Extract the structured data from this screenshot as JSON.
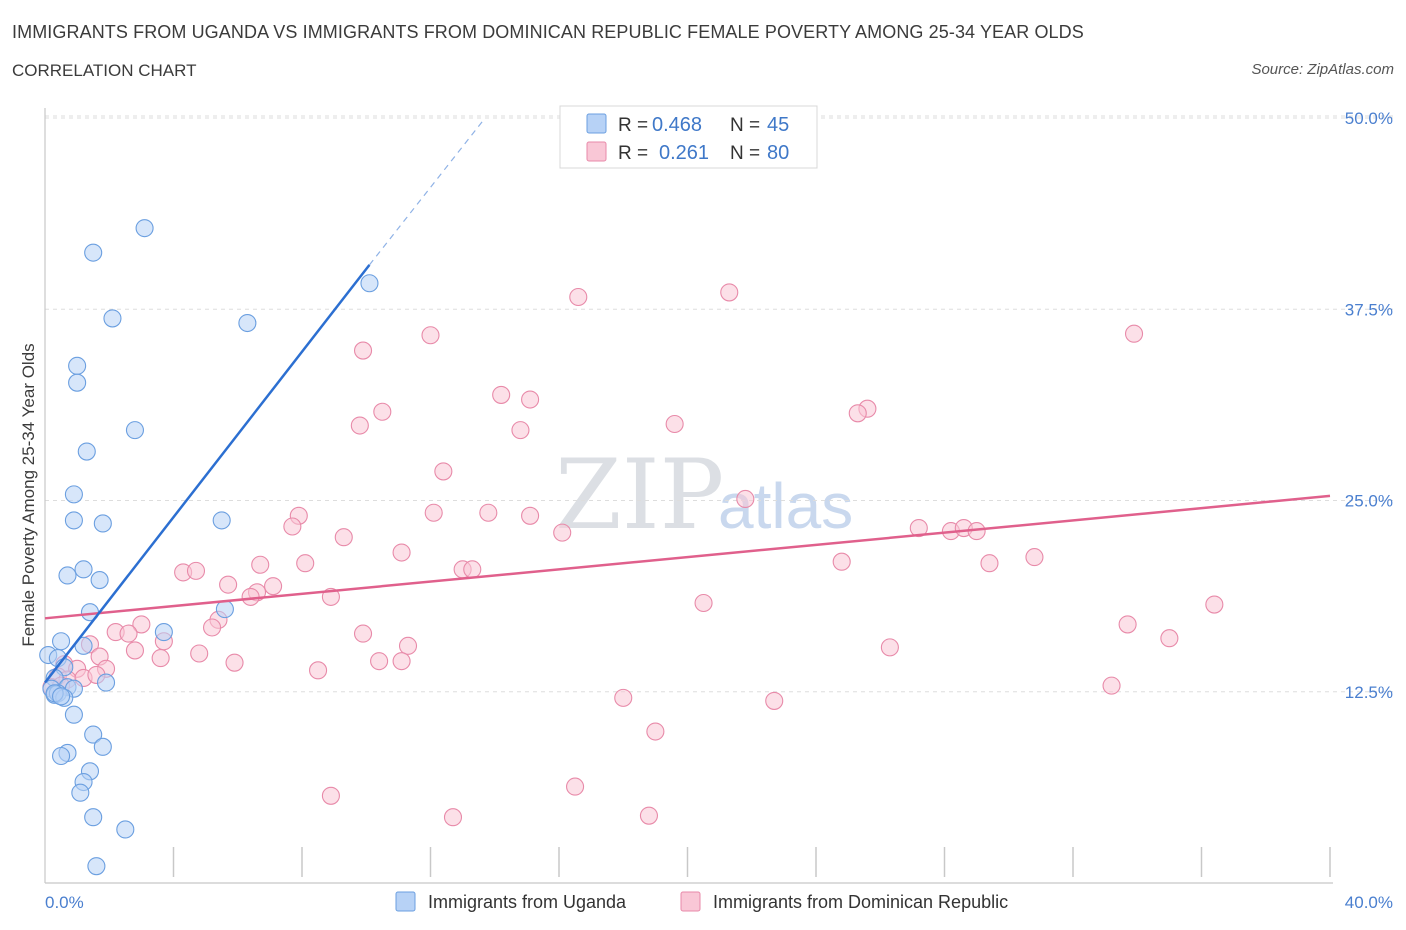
{
  "header": {
    "title": "IMMIGRANTS FROM UGANDA VS IMMIGRANTS FROM DOMINICAN REPUBLIC FEMALE POVERTY AMONG 25-34 YEAR OLDS",
    "subtitle": "CORRELATION CHART",
    "source": "Source: ZipAtlas.com"
  },
  "watermark": {
    "zip": "ZIP",
    "atlas": "atlas"
  },
  "colors": {
    "uganda_fill": "#b7d2f6",
    "uganda_stroke": "#6b9fe0",
    "uganda_line": "#2c6fd1",
    "dominican_fill": "#f9c7d6",
    "dominican_stroke": "#e88aa9",
    "dominican_line": "#e0608c",
    "grid": "#dddddd",
    "tick_label": "#4a7fcf"
  },
  "legend": {
    "rows": [
      {
        "r_label": "R =",
        "r_value": "0.468",
        "n_label": "N =",
        "n_value": "45"
      },
      {
        "r_label": "R =",
        "r_value": "0.261",
        "n_label": "N =",
        "n_value": "80"
      }
    ]
  },
  "bottom_legend": {
    "items": [
      "Immigrants from Uganda",
      "Immigrants from Dominican Republic"
    ]
  },
  "chart_data": {
    "type": "scatter",
    "title": "IMMIGRANTS FROM UGANDA VS IMMIGRANTS FROM DOMINICAN REPUBLIC FEMALE POVERTY AMONG 25-34 YEAR OLDS",
    "xlabel": "",
    "ylabel": "Female Poverty Among 25-34 Year Olds",
    "xlim": [
      0,
      40
    ],
    "ylim": [
      0,
      50
    ],
    "x_tick_labels": [
      "0.0%",
      "40.0%"
    ],
    "y_tick_values": [
      12.5,
      25.0,
      37.5,
      50.0
    ],
    "y_tick_labels": [
      "12.5%",
      "25.0%",
      "37.5%",
      "50.0%"
    ],
    "series": [
      {
        "name": "Immigrants from Uganda",
        "r": 0.468,
        "n": 45,
        "trend": {
          "x0": 0.0,
          "y0": 13.1,
          "x1": 10.1,
          "y1": 40.4,
          "dash_to_x": 13.7,
          "dash_to_y": 50.0
        },
        "points": [
          [
            3.1,
            42.8
          ],
          [
            1.5,
            41.2
          ],
          [
            10.1,
            39.2
          ],
          [
            2.1,
            36.9
          ],
          [
            6.3,
            36.6
          ],
          [
            1.0,
            33.8
          ],
          [
            1.0,
            32.7
          ],
          [
            2.8,
            29.6
          ],
          [
            1.3,
            28.2
          ],
          [
            0.9,
            25.4
          ],
          [
            0.9,
            23.7
          ],
          [
            1.8,
            23.5
          ],
          [
            5.5,
            23.7
          ],
          [
            1.2,
            20.5
          ],
          [
            0.7,
            20.1
          ],
          [
            1.7,
            19.8
          ],
          [
            5.6,
            17.9
          ],
          [
            1.4,
            17.7
          ],
          [
            3.7,
            16.4
          ],
          [
            0.5,
            15.8
          ],
          [
            1.2,
            15.5
          ],
          [
            0.1,
            14.9
          ],
          [
            0.4,
            14.7
          ],
          [
            0.6,
            14.1
          ],
          [
            0.3,
            13.4
          ],
          [
            1.9,
            13.1
          ],
          [
            0.2,
            12.7
          ],
          [
            0.7,
            12.8
          ],
          [
            0.9,
            12.7
          ],
          [
            0.3,
            12.3
          ],
          [
            0.4,
            12.4
          ],
          [
            0.6,
            12.1
          ],
          [
            0.9,
            11.0
          ],
          [
            1.5,
            9.7
          ],
          [
            1.8,
            8.9
          ],
          [
            0.7,
            8.5
          ],
          [
            0.5,
            8.3
          ],
          [
            1.4,
            7.3
          ],
          [
            1.2,
            6.6
          ],
          [
            1.1,
            5.9
          ],
          [
            1.5,
            4.3
          ],
          [
            2.5,
            3.5
          ],
          [
            1.6,
            1.1
          ],
          [
            0.3,
            12.4
          ],
          [
            0.5,
            12.2
          ]
        ]
      },
      {
        "name": "Immigrants from Dominican Republic",
        "r": 0.261,
        "n": 80,
        "trend": {
          "x0": 0.0,
          "y0": 17.3,
          "x1": 40.0,
          "y1": 25.3
        },
        "points": [
          [
            16.6,
            38.3
          ],
          [
            21.3,
            38.6
          ],
          [
            12.0,
            35.8
          ],
          [
            9.9,
            34.8
          ],
          [
            33.9,
            35.9
          ],
          [
            14.2,
            31.9
          ],
          [
            15.1,
            31.6
          ],
          [
            10.5,
            30.8
          ],
          [
            25.6,
            31.0
          ],
          [
            25.3,
            30.7
          ],
          [
            9.8,
            29.9
          ],
          [
            19.6,
            30.0
          ],
          [
            14.8,
            29.6
          ],
          [
            12.4,
            26.9
          ],
          [
            21.8,
            25.1
          ],
          [
            12.1,
            24.2
          ],
          [
            13.8,
            24.2
          ],
          [
            15.1,
            24.0
          ],
          [
            7.9,
            24.0
          ],
          [
            7.7,
            23.3
          ],
          [
            9.3,
            22.6
          ],
          [
            16.1,
            22.9
          ],
          [
            27.2,
            23.2
          ],
          [
            28.2,
            23.0
          ],
          [
            28.6,
            23.2
          ],
          [
            29.0,
            23.0
          ],
          [
            11.1,
            21.6
          ],
          [
            6.7,
            20.8
          ],
          [
            8.1,
            20.9
          ],
          [
            24.8,
            21.0
          ],
          [
            29.4,
            20.9
          ],
          [
            30.8,
            21.3
          ],
          [
            13.0,
            20.5
          ],
          [
            13.3,
            20.5
          ],
          [
            4.3,
            20.3
          ],
          [
            4.7,
            20.4
          ],
          [
            5.7,
            19.5
          ],
          [
            7.1,
            19.4
          ],
          [
            6.6,
            19.0
          ],
          [
            6.4,
            18.7
          ],
          [
            8.9,
            18.7
          ],
          [
            20.5,
            18.3
          ],
          [
            36.4,
            18.2
          ],
          [
            5.4,
            17.2
          ],
          [
            5.2,
            16.7
          ],
          [
            3.0,
            16.9
          ],
          [
            2.2,
            16.4
          ],
          [
            2.6,
            16.3
          ],
          [
            9.9,
            16.3
          ],
          [
            33.7,
            16.9
          ],
          [
            35.0,
            16.0
          ],
          [
            1.4,
            15.6
          ],
          [
            3.7,
            15.8
          ],
          [
            2.8,
            15.2
          ],
          [
            11.3,
            15.5
          ],
          [
            26.3,
            15.4
          ],
          [
            4.8,
            15.0
          ],
          [
            1.7,
            14.8
          ],
          [
            3.6,
            14.7
          ],
          [
            5.9,
            14.4
          ],
          [
            10.4,
            14.5
          ],
          [
            11.1,
            14.5
          ],
          [
            0.6,
            14.3
          ],
          [
            1.0,
            14.0
          ],
          [
            1.9,
            14.0
          ],
          [
            8.5,
            13.9
          ],
          [
            0.4,
            13.5
          ],
          [
            0.7,
            13.3
          ],
          [
            1.2,
            13.4
          ],
          [
            0.2,
            12.8
          ],
          [
            33.2,
            12.9
          ],
          [
            18.0,
            12.1
          ],
          [
            22.7,
            11.9
          ],
          [
            19.0,
            9.9
          ],
          [
            16.5,
            6.3
          ],
          [
            8.9,
            5.7
          ],
          [
            12.7,
            4.3
          ],
          [
            18.8,
            4.4
          ],
          [
            0.5,
            12.9
          ],
          [
            1.6,
            13.6
          ]
        ]
      }
    ]
  }
}
